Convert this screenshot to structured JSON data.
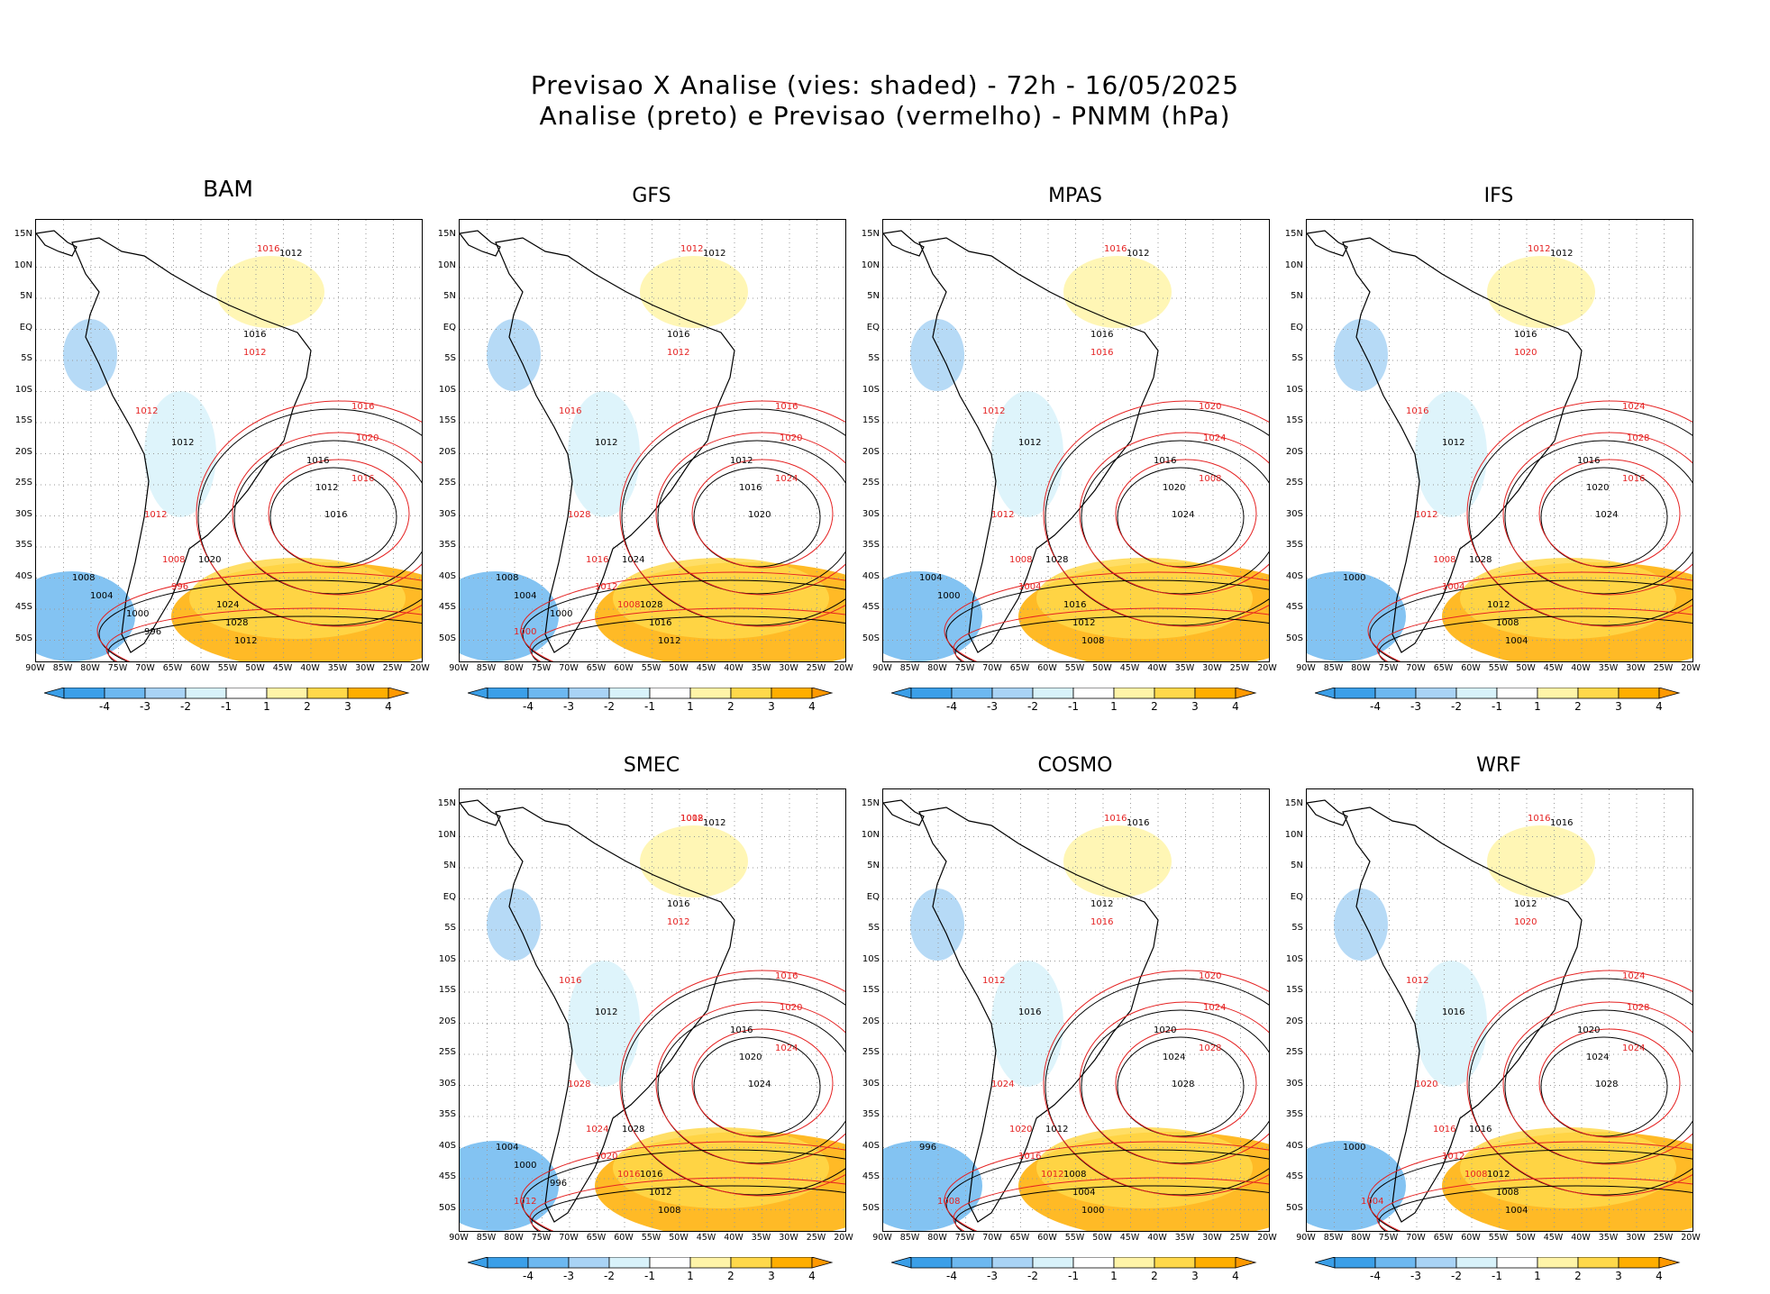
{
  "header": {
    "title_line1": "Previsao X Analise (vies: shaded) - 72h - 16/05/2025",
    "title_line2": "Analise (preto) e Previsao (vermelho) - PNMM (hPa)"
  },
  "axes": {
    "lat_labels": [
      "15N",
      "10N",
      "5N",
      "EQ",
      "5S",
      "10S",
      "15S",
      "20S",
      "25S",
      "30S",
      "35S",
      "40S",
      "45S",
      "50S"
    ],
    "lon_labels": [
      "90W",
      "85W",
      "80W",
      "75W",
      "70W",
      "65W",
      "60W",
      "55W",
      "50W",
      "45W",
      "40W",
      "35W",
      "30W",
      "25W",
      "20W"
    ]
  },
  "colorbar": {
    "labels": [
      "-4",
      "-3",
      "-2",
      "-1",
      "1",
      "2",
      "3",
      "4"
    ],
    "colors": [
      "#3b9fe8",
      "#6db8f0",
      "#a9d3f5",
      "#d8f2fa",
      "#ffffff",
      "#fff4a8",
      "#ffd84a",
      "#ffae00",
      "#ff9900"
    ]
  },
  "contour_colors": {
    "analysis": "#000000",
    "forecast": "#e52222"
  },
  "panels": [
    {
      "name": "BAM",
      "isobars": {
        "black": [
          "1012",
          "1016",
          "1012",
          "1016",
          "1012",
          "1016",
          "1020",
          "1024",
          "1028",
          "1012",
          "1008",
          "1004",
          "1000",
          "996"
        ],
        "red": [
          "1016",
          "1012",
          "1012",
          "1016",
          "1020",
          "1016",
          "1012",
          "1008",
          "996"
        ]
      }
    },
    {
      "name": "GFS",
      "isobars": {
        "black": [
          "1012",
          "1016",
          "1012",
          "1012",
          "1016",
          "1020",
          "1024",
          "1028",
          "1016",
          "1012",
          "1008",
          "1004",
          "1000"
        ],
        "red": [
          "1012",
          "1016",
          "1012",
          "1016",
          "1020",
          "1024",
          "1028",
          "1016",
          "1012",
          "1008",
          "1000"
        ]
      }
    },
    {
      "name": "MPAS",
      "isobars": {
        "black": [
          "1012",
          "1016",
          "1012",
          "1016",
          "1020",
          "1024",
          "1028",
          "1016",
          "1012",
          "1008",
          "1004",
          "1000"
        ],
        "red": [
          "1016",
          "1012",
          "1016",
          "1020",
          "1024",
          "1008",
          "1012",
          "1008",
          "1004"
        ]
      }
    },
    {
      "name": "IFS",
      "isobars": {
        "black": [
          "1012",
          "1016",
          "1012",
          "1016",
          "1020",
          "1024",
          "1028",
          "1012",
          "1008",
          "1004",
          "1000"
        ],
        "red": [
          "1012",
          "1016",
          "1020",
          "1024",
          "1028",
          "1016",
          "1012",
          "1008",
          "1004"
        ]
      }
    },
    {
      "name": "SMEC",
      "isobars": {
        "black": [
          "1012",
          "1016",
          "1012",
          "1016",
          "1020",
          "1024",
          "1028",
          "1016",
          "1012",
          "1008",
          "1004",
          "1000",
          "996"
        ],
        "red": [
          "1012",
          "1016",
          "1012",
          "1016",
          "1020",
          "1024",
          "1028",
          "1024",
          "1020",
          "1016",
          "1012",
          "1008"
        ]
      }
    },
    {
      "name": "COSMO",
      "isobars": {
        "black": [
          "1016",
          "1012",
          "1016",
          "1020",
          "1024",
          "1028",
          "1012",
          "1008",
          "1004",
          "1000",
          "996"
        ],
        "red": [
          "1016",
          "1012",
          "1016",
          "1020",
          "1024",
          "1028",
          "1024",
          "1020",
          "1016",
          "1012",
          "1008"
        ]
      }
    },
    {
      "name": "WRF",
      "isobars": {
        "black": [
          "1016",
          "1012",
          "1016",
          "1020",
          "1024",
          "1028",
          "1016",
          "1012",
          "1008",
          "1004",
          "1000"
        ],
        "red": [
          "1016",
          "1012",
          "1020",
          "1024",
          "1028",
          "1024",
          "1020",
          "1016",
          "1012",
          "1008",
          "1004"
        ]
      }
    }
  ]
}
